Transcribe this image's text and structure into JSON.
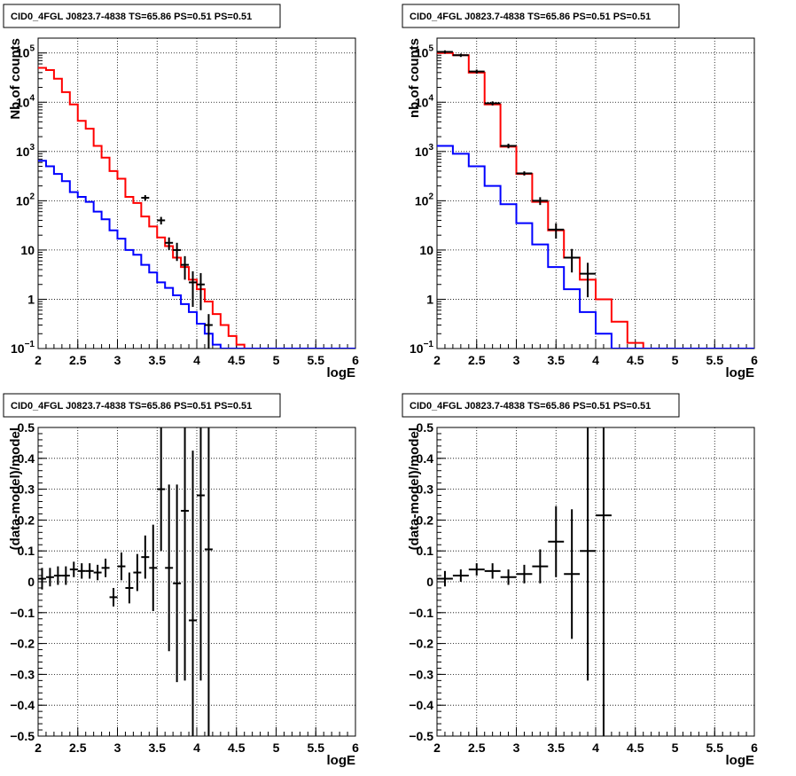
{
  "chart_data": [
    {
      "type": "line",
      "title": "CID0_4FGL J0823.7-4838 TS=65.86 PS=0.51 PS=0.51",
      "xlabel": "logE",
      "ylabel": "Nb of counts",
      "xlim": [
        2,
        6
      ],
      "ylim": [
        0.1,
        200000
      ],
      "log_y": true,
      "grid": true,
      "x_ticks": [
        "2",
        "2.5",
        "3",
        "3.5",
        "4",
        "4.5",
        "5",
        "5.5",
        "6"
      ],
      "y_ticks": [
        {
          "v": 0.1,
          "label": "10",
          "sup": "−1"
        },
        {
          "v": 1,
          "label": "1",
          "sup": ""
        },
        {
          "v": 10,
          "label": "10",
          "sup": ""
        },
        {
          "v": 100,
          "label": "10",
          "sup": "2"
        },
        {
          "v": 1000,
          "label": "10",
          "sup": "3"
        },
        {
          "v": 10000,
          "label": "10",
          "sup": "4"
        },
        {
          "v": 100000,
          "label": "10",
          "sup": "5"
        }
      ],
      "bin_edges": [
        2.0,
        2.1,
        2.2,
        2.3,
        2.4,
        2.5,
        2.6,
        2.7,
        2.8,
        2.9,
        3.0,
        3.1,
        3.2,
        3.3,
        3.4,
        3.5,
        3.6,
        3.7,
        3.8,
        3.9,
        4.0,
        4.1,
        4.2,
        4.3,
        4.4,
        4.5,
        4.6,
        4.7,
        4.8,
        4.9,
        5.0,
        5.1,
        5.2,
        5.3,
        5.4,
        5.5,
        5.6,
        5.7,
        5.8,
        5.9,
        6.0
      ],
      "series": [
        {
          "role": "model_total",
          "color": "#ff0000",
          "values": [
            50000,
            45000,
            30000,
            16000,
            9000,
            4200,
            2900,
            1300,
            750,
            400,
            280,
            120,
            90,
            48,
            30,
            18,
            12,
            7,
            4.5,
            2.5,
            1.6,
            0.9,
            0.5,
            0.3,
            0.18,
            0.12,
            0.1,
            0.1,
            0.1,
            0.1,
            0.1,
            0.1,
            0.1,
            0.1,
            0.1,
            0.1,
            0.1,
            0.1,
            0.1,
            0.1
          ]
        },
        {
          "role": "model_component",
          "color": "#0000ff",
          "values": [
            650,
            500,
            350,
            250,
            150,
            120,
            95,
            60,
            42,
            25,
            17,
            10,
            8,
            5,
            3.5,
            2.2,
            1.7,
            1.2,
            0.8,
            0.55,
            0.32,
            0.2,
            0.12,
            0.1,
            0.1,
            0.1,
            0.1,
            0.1,
            0.1,
            0.1,
            0.1,
            0.1,
            0.1,
            0.1,
            0.1,
            0.1,
            0.1,
            0.1,
            0.1,
            0.1
          ]
        },
        {
          "role": "data",
          "color": "#000000",
          "points": [
            [
              3.35,
              115,
              15
            ],
            [
              3.55,
              40,
              7
            ],
            [
              3.65,
              14,
              4
            ],
            [
              3.75,
              10,
              4
            ],
            [
              3.85,
              5,
              2.5
            ],
            [
              3.95,
              2.2,
              1.5
            ],
            [
              4.05,
              2.0,
              1.4
            ],
            [
              4.15,
              0.3,
              0.2
            ]
          ]
        }
      ]
    },
    {
      "type": "line",
      "title": "CID0_4FGL J0823.7-4838 TS=65.86 PS=0.51 PS=0.51",
      "xlabel": "logE",
      "ylabel": "nb of counts",
      "xlim": [
        2,
        6
      ],
      "ylim": [
        0.1,
        200000
      ],
      "log_y": true,
      "grid": true,
      "x_ticks": [
        "2",
        "2.5",
        "3",
        "3.5",
        "4",
        "4.5",
        "5",
        "5.5",
        "6"
      ],
      "y_ticks": [
        {
          "v": 0.1,
          "label": "10",
          "sup": "−1"
        },
        {
          "v": 1,
          "label": "1",
          "sup": ""
        },
        {
          "v": 10,
          "label": "10",
          "sup": ""
        },
        {
          "v": 100,
          "label": "10",
          "sup": "2"
        },
        {
          "v": 1000,
          "label": "10",
          "sup": "3"
        },
        {
          "v": 10000,
          "label": "10",
          "sup": "4"
        },
        {
          "v": 100000,
          "label": "10",
          "sup": "5"
        }
      ],
      "bin_edges": [
        2.0,
        2.2,
        2.4,
        2.6,
        2.8,
        3.0,
        3.2,
        3.4,
        3.6,
        3.8,
        4.0,
        4.2,
        4.4,
        4.6,
        4.8,
        5.0,
        5.2,
        5.4,
        5.6,
        5.8,
        6.0
      ],
      "series": [
        {
          "role": "model_total",
          "color": "#ff0000",
          "values": [
            100000,
            90000,
            40000,
            9000,
            1250,
            350,
            95,
            25,
            7,
            2.5,
            1.0,
            0.35,
            0.13,
            0.1,
            0.1,
            0.1,
            0.1,
            0.1,
            0.1,
            0.1
          ]
        },
        {
          "role": "model_component",
          "color": "#0000ff",
          "values": [
            1300,
            900,
            500,
            200,
            85,
            35,
            13,
            4.5,
            1.6,
            0.55,
            0.2,
            0.1,
            0.1,
            0.1,
            0.1,
            0.1,
            0.1,
            0.1,
            0.1,
            0.1
          ]
        },
        {
          "role": "data",
          "color": "#000000",
          "points": [
            [
              2.1,
              105000,
              8000
            ],
            [
              2.3,
              90000,
              7000
            ],
            [
              2.5,
              42000,
              4000
            ],
            [
              2.7,
              9500,
              900
            ],
            [
              2.9,
              1300,
              140
            ],
            [
              3.1,
              360,
              35
            ],
            [
              3.3,
              100,
              18
            ],
            [
              3.5,
              26,
              9
            ],
            [
              3.7,
              7,
              3.5
            ],
            [
              3.9,
              3.3,
              2.2
            ]
          ]
        }
      ]
    },
    {
      "type": "scatter",
      "title": "CID0_4FGL J0823.7-4838 TS=65.86 PS=0.51 PS=0.51",
      "xlabel": "logE",
      "ylabel": "(data-model)/model",
      "xlim": [
        2,
        6
      ],
      "ylim": [
        -0.5,
        0.5
      ],
      "grid": true,
      "x_ticks": [
        "2",
        "2.5",
        "3",
        "3.5",
        "4",
        "4.5",
        "5",
        "5.5",
        "6"
      ],
      "y_ticks": [
        "−0.5",
        "−0.4",
        "−0.3",
        "−0.2",
        "−0.1",
        "0",
        "0.1",
        "0.2",
        "0.3",
        "0.4",
        "0.5"
      ],
      "series": [
        {
          "role": "residuals",
          "color": "#000000",
          "half_width": 0.05,
          "points": [
            [
              2.05,
              0.01,
              0.035
            ],
            [
              2.15,
              0.015,
              0.03
            ],
            [
              2.25,
              0.02,
              0.03
            ],
            [
              2.35,
              0.02,
              0.03
            ],
            [
              2.45,
              0.04,
              0.025
            ],
            [
              2.55,
              0.035,
              0.025
            ],
            [
              2.65,
              0.035,
              0.025
            ],
            [
              2.75,
              0.03,
              0.025
            ],
            [
              2.85,
              0.045,
              0.03
            ],
            [
              2.95,
              -0.05,
              0.03
            ],
            [
              3.05,
              0.05,
              0.045
            ],
            [
              3.15,
              -0.02,
              0.05
            ],
            [
              3.25,
              0.03,
              0.06
            ],
            [
              3.35,
              0.08,
              0.07
            ],
            [
              3.45,
              0.045,
              0.14
            ],
            [
              3.55,
              0.3,
              0.2
            ],
            [
              3.65,
              0.045,
              0.27
            ],
            [
              3.75,
              -0.005,
              0.32
            ],
            [
              3.85,
              0.23,
              0.55
            ],
            [
              3.95,
              -0.125,
              0.55
            ],
            [
              4.05,
              0.28,
              0.6
            ],
            [
              4.15,
              0.105,
              0.7
            ]
          ]
        }
      ]
    },
    {
      "type": "scatter",
      "title": "CID0_4FGL J0823.7-4838 TS=65.86 PS=0.51 PS=0.51",
      "xlabel": "logE",
      "ylabel": "(data-model)/model",
      "xlim": [
        2,
        6
      ],
      "ylim": [
        -0.5,
        0.5
      ],
      "grid": true,
      "x_ticks": [
        "2",
        "2.5",
        "3",
        "3.5",
        "4",
        "4.5",
        "5",
        "5.5",
        "6"
      ],
      "y_ticks": [
        "−0.5",
        "−0.4",
        "−0.3",
        "−0.2",
        "−0.1",
        "0",
        "0.1",
        "0.2",
        "0.3",
        "0.4",
        "0.5"
      ],
      "series": [
        {
          "role": "residuals",
          "color": "#000000",
          "half_width": 0.1,
          "points": [
            [
              2.1,
              0.01,
              0.025
            ],
            [
              2.3,
              0.02,
              0.02
            ],
            [
              2.5,
              0.04,
              0.02
            ],
            [
              2.7,
              0.035,
              0.025
            ],
            [
              2.9,
              0.015,
              0.025
            ],
            [
              3.1,
              0.025,
              0.03
            ],
            [
              3.3,
              0.05,
              0.055
            ],
            [
              3.5,
              0.13,
              0.115
            ],
            [
              3.7,
              0.025,
              0.21
            ],
            [
              3.9,
              0.1,
              0.42
            ],
            [
              4.1,
              0.215,
              0.75
            ]
          ]
        }
      ]
    }
  ]
}
